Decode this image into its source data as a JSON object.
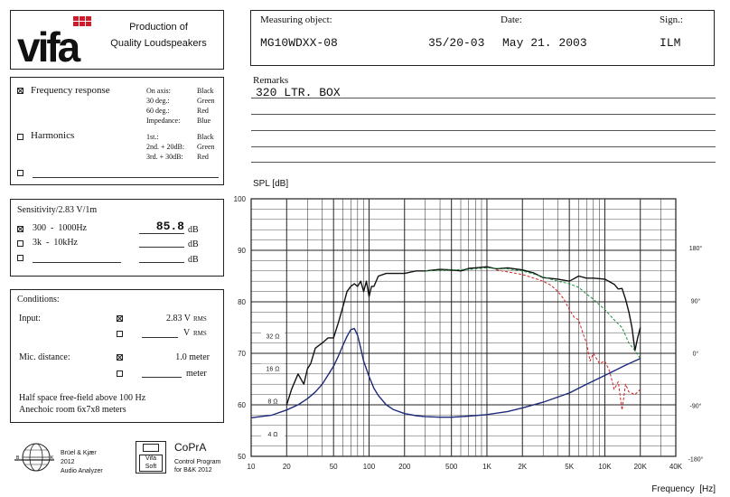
{
  "header": {
    "logo_text": "vifa",
    "production_line1": "Production of",
    "production_line2": "Quality Loudspeakers"
  },
  "measurement": {
    "object_label": "Measuring object:",
    "object_value": "MG10WDXX-08",
    "code_value": "35/20-03",
    "date_label": "Date:",
    "date_value": "May 21. 2003",
    "sign_label": "Sign.:",
    "sign_value": "ILM",
    "remarks_label": "Remarks",
    "remarks_value": "320 LTR. BOX"
  },
  "measure_type": {
    "frequency_response": {
      "label": "Frequency response",
      "checked": true
    },
    "on_axis_label": "On axis:",
    "on_axis_color": "Black",
    "deg30_label": "30 deg.:",
    "deg30_color": "Green",
    "deg60_label": "60 deg.:",
    "deg60_color": "Red",
    "impedance_label": "Impedance:",
    "impedance_color": "Blue",
    "harmonics": {
      "label": "Harmonics",
      "checked": false
    },
    "h1_label": "1st.:",
    "h1_color": "Black",
    "h2_label": "2nd. + 20dB:",
    "h2_color": "Green",
    "h3_label": "3rd. + 30dB:",
    "h3_color": "Red"
  },
  "sensitivity": {
    "title": "Sensitivity/2.83 V/1m",
    "row1_range": "300  -  1000Hz",
    "row1_value": "85.8",
    "row1_unit": "dB",
    "row2_range": "3k  -  10kHz",
    "row2_unit": "dB",
    "row3_unit": "dB"
  },
  "conditions": {
    "title": "Conditions:",
    "input_label": "Input:",
    "input1_value": "2.83 V",
    "input1_unit": "RMS",
    "input2_value": "V",
    "input2_unit": "RMS",
    "mic_label": "Mic. distance:",
    "mic1_value": "1.0 meter",
    "mic2_unit": "meter",
    "note1": "Half space free-field above 100 Hz",
    "note2": "Anechoic room 6x7x8 meters"
  },
  "footer": {
    "bk_line1": "Brüel & Kjær",
    "bk_line2": "2012",
    "bk_line3": "Audio Analyzer",
    "vifa_soft1": "Vifa",
    "vifa_soft2": "Soft",
    "copra_title": "CoPrA",
    "copra_line1": "Control Program",
    "copra_line2": "for B&K 2012"
  },
  "chart_data": {
    "type": "line",
    "ylabel": "SPL [dB]",
    "xlabel": "Frequency  [Hz]",
    "x_scale": "log",
    "xlim": [
      10,
      40000
    ],
    "ylim": [
      50,
      100
    ],
    "grid": true,
    "x_ticks": [
      {
        "v": 10,
        "label": "10"
      },
      {
        "v": 20,
        "label": "20"
      },
      {
        "v": 50,
        "label": "50"
      },
      {
        "v": 100,
        "label": "100"
      },
      {
        "v": 200,
        "label": "200"
      },
      {
        "v": 500,
        "label": "500"
      },
      {
        "v": 1000,
        "label": "1K"
      },
      {
        "v": 2000,
        "label": "2K"
      },
      {
        "v": 5000,
        "label": "5K"
      },
      {
        "v": 10000,
        "label": "10K"
      },
      {
        "v": 20000,
        "label": "20K"
      },
      {
        "v": 40000,
        "label": "40K"
      }
    ],
    "y_ticks": [
      100,
      90,
      80,
      70,
      60,
      50
    ],
    "impedance_ticks": [
      {
        "db": 73.4,
        "label": "32 Ω"
      },
      {
        "db": 67.1,
        "label": "16 Ω"
      },
      {
        "db": 60.8,
        "label": "8 Ω"
      },
      {
        "db": 54.4,
        "label": "4 Ω"
      }
    ],
    "phase_ticks": [
      {
        "db": 90.5,
        "label": "180°"
      },
      {
        "db": 80.3,
        "label": "90°"
      },
      {
        "db": 70.1,
        "label": "0°"
      },
      {
        "db": 59.9,
        "label": "-90°"
      },
      {
        "db": 49.6,
        "label": "-180°"
      }
    ],
    "series": [
      {
        "name": "On axis",
        "color": "#111111",
        "style": "solid",
        "x": [
          20,
          22,
          25,
          28,
          30,
          32,
          35,
          40,
          45,
          50,
          55,
          60,
          65,
          70,
          75,
          80,
          85,
          90,
          95,
          100,
          105,
          110,
          120,
          140,
          160,
          200,
          250,
          300,
          400,
          500,
          600,
          700,
          800,
          1000,
          1200,
          1500,
          2000,
          2500,
          3000,
          4000,
          5000,
          6000,
          7000,
          8000,
          10000,
          12000,
          13000,
          14000,
          15000,
          16000,
          17000,
          18000,
          19000,
          20000
        ],
        "y": [
          60,
          63,
          66,
          64,
          67,
          68,
          71,
          72,
          73,
          73,
          76,
          79,
          82,
          83,
          83.5,
          83,
          84,
          82,
          84,
          81,
          83,
          83,
          85,
          85.5,
          85.5,
          85.5,
          86,
          86,
          86.3,
          86.2,
          86,
          86.5,
          86.6,
          86.8,
          86.4,
          86.6,
          86.2,
          85.6,
          84.7,
          84.4,
          84,
          85,
          84.6,
          84.6,
          84.4,
          83.4,
          82.5,
          82.6,
          80.5,
          78,
          75,
          70.5,
          73,
          75
        ]
      },
      {
        "name": "30 deg.",
        "color": "#1e8a3c",
        "style": "dashed",
        "x": [
          300,
          500,
          700,
          1000,
          1500,
          2000,
          2500,
          3000,
          4000,
          5000,
          6000,
          7000,
          8000,
          10000,
          12000,
          14000,
          16000,
          18000,
          20000
        ],
        "y": [
          86,
          86.2,
          86.3,
          86.6,
          86.4,
          86,
          85.4,
          84.8,
          84,
          83.5,
          82.8,
          81.5,
          80.5,
          78.5,
          76.5,
          75,
          72,
          70.5,
          69
        ]
      },
      {
        "name": "60 deg.",
        "color": "#d42020",
        "style": "dashed",
        "x": [
          1200,
          1500,
          2000,
          2500,
          3000,
          3500,
          4000,
          4500,
          5000,
          5500,
          6000,
          6500,
          7000,
          7500,
          8000,
          9000,
          10000,
          11000,
          12000,
          13000,
          14000,
          15000,
          16000,
          18000,
          20000
        ],
        "y": [
          86.2,
          85.8,
          85.3,
          84.6,
          84,
          83.2,
          82,
          80.5,
          78.5,
          77,
          76.5,
          74,
          72,
          68.5,
          70,
          68,
          68.5,
          66.5,
          63,
          64.5,
          59,
          64,
          62.5,
          62,
          63
        ]
      },
      {
        "name": "Impedance",
        "color": "#1c2a7a",
        "style": "solid",
        "x": [
          10,
          15,
          20,
          25,
          30,
          35,
          40,
          45,
          50,
          55,
          60,
          65,
          70,
          75,
          80,
          85,
          90,
          100,
          110,
          120,
          140,
          160,
          200,
          250,
          300,
          400,
          500,
          700,
          1000,
          1500,
          2000,
          3000,
          5000,
          7000,
          10000,
          15000,
          20000
        ],
        "y": [
          57.5,
          58,
          59,
          60,
          61.2,
          62.5,
          64,
          65.8,
          67.5,
          69.5,
          71.5,
          73.3,
          74.6,
          74.8,
          73.5,
          71,
          68.5,
          65.5,
          63.2,
          61.8,
          60,
          59.1,
          58.3,
          57.9,
          57.7,
          57.6,
          57.6,
          57.8,
          58.1,
          58.7,
          59.4,
          60.5,
          62.3,
          64,
          65.7,
          67.7,
          69
        ]
      }
    ]
  }
}
